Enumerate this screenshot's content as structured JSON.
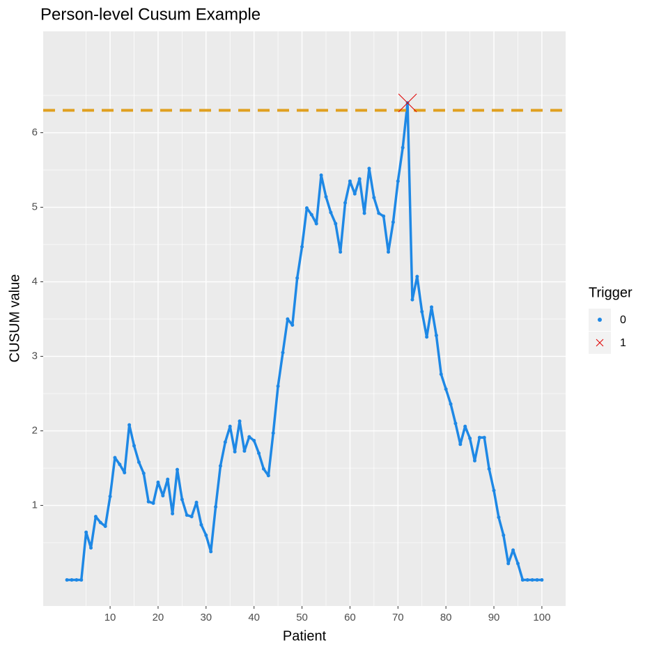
{
  "chart_data": {
    "type": "line",
    "title": "Person-level Cusum Example",
    "x_label": "Patient",
    "y_label": "CUSUM value",
    "legend_title": "Trigger",
    "x": [
      1,
      2,
      3,
      4,
      5,
      6,
      7,
      8,
      9,
      10,
      11,
      12,
      13,
      14,
      15,
      16,
      17,
      18,
      19,
      20,
      21,
      22,
      23,
      24,
      25,
      26,
      27,
      28,
      29,
      30,
      31,
      32,
      33,
      34,
      35,
      36,
      37,
      38,
      39,
      40,
      41,
      42,
      43,
      44,
      45,
      46,
      47,
      48,
      49,
      50,
      51,
      52,
      53,
      54,
      55,
      56,
      57,
      58,
      59,
      60,
      61,
      62,
      63,
      64,
      65,
      66,
      67,
      68,
      69,
      70,
      71,
      72,
      73,
      74,
      75,
      76,
      77,
      78,
      79,
      80,
      81,
      82,
      83,
      84,
      85,
      86,
      87,
      88,
      89,
      90,
      91,
      92,
      93,
      94,
      95,
      96,
      97,
      98,
      99,
      100
    ],
    "series": [
      {
        "name": "0",
        "color": "#1e88e5",
        "values": [
          0,
          0,
          0,
          0,
          0.64,
          0.43,
          0.85,
          0.77,
          0.72,
          1.12,
          1.64,
          1.55,
          1.44,
          2.08,
          1.8,
          1.58,
          1.43,
          1.05,
          1.03,
          1.31,
          1.13,
          1.35,
          0.89,
          1.48,
          1.08,
          0.87,
          0.85,
          1.04,
          0.74,
          0.6,
          0.38,
          0.98,
          1.53,
          1.85,
          2.06,
          1.72,
          2.13,
          1.73,
          1.92,
          1.87,
          1.7,
          1.49,
          1.4,
          1.97,
          2.6,
          3.05,
          3.5,
          3.42,
          4.05,
          4.47,
          4.99,
          4.9,
          4.78,
          5.43,
          5.14,
          4.93,
          4.78,
          4.4,
          5.06,
          5.35,
          5.18,
          5.38,
          4.92,
          5.52,
          5.13,
          4.92,
          4.88,
          4.4,
          4.8,
          5.35,
          5.8,
          6.4,
          3.76,
          4.07,
          3.6,
          3.26,
          3.66,
          3.28,
          2.76,
          2.56,
          2.36,
          2.1,
          1.82,
          2.06,
          1.9,
          1.6,
          1.91,
          1.91,
          1.49,
          1.2,
          0.84,
          0.6,
          0.22,
          0.4,
          0.22,
          0,
          0,
          0,
          0,
          0
        ]
      },
      {
        "name": "1",
        "color": "#e00000",
        "x": [
          72
        ],
        "values": [
          6.4
        ]
      }
    ],
    "threshold": 6.3,
    "threshold_color": "#e0a020",
    "xlim": [
      -3.95,
      104.95
    ],
    "xticks": [
      10,
      20,
      30,
      40,
      50,
      60,
      70,
      80,
      90,
      100
    ],
    "ylim": [
      -0.35,
      7.36
    ],
    "yticks": [
      1,
      2,
      3,
      4,
      5,
      6
    ],
    "grid": true
  }
}
